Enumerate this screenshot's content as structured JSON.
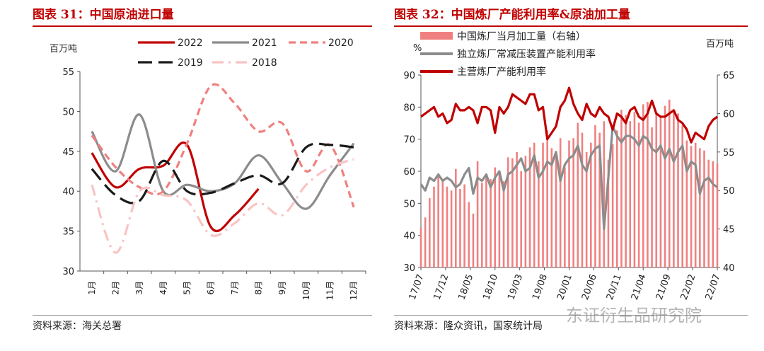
{
  "left": {
    "title": "图表 31：中国原油进口量",
    "source": "资料来源：海关总署",
    "chart_data": {
      "type": "line",
      "title": "中国原油进口量",
      "ylabel": "百万吨",
      "ylim": [
        30,
        55
      ],
      "yticks": [
        30,
        35,
        40,
        45,
        50,
        55
      ],
      "categories": [
        "1月",
        "2月",
        "3月",
        "4月",
        "5月",
        "6月",
        "7月",
        "8月",
        "9月",
        "10月",
        "11月",
        "12月"
      ],
      "legend_position": "top",
      "grid": false,
      "series": [
        {
          "name": "2022",
          "color": "#c00000",
          "dash": "solid",
          "values": [
            44.8,
            40.5,
            42.8,
            43.2,
            45.8,
            35.5,
            37.0,
            40.3,
            null,
            null,
            null,
            null
          ]
        },
        {
          "name": "2021",
          "color": "#8c8c8c",
          "dash": "solid",
          "values": [
            47.5,
            42.5,
            49.6,
            40.0,
            40.8,
            40.0,
            41.0,
            44.5,
            41.0,
            37.8,
            42.0,
            46.0
          ]
        },
        {
          "name": "2020",
          "color": "#f08080",
          "dash": "dash",
          "values": [
            47.0,
            43.0,
            40.5,
            40.0,
            46.0,
            53.2,
            51.0,
            47.5,
            48.5,
            42.5,
            45.8,
            38.0
          ]
        },
        {
          "name": "2019",
          "color": "#1a1a1a",
          "dash": "longdash",
          "values": [
            42.8,
            39.5,
            38.8,
            43.8,
            40.0,
            39.8,
            41.0,
            42.0,
            41.0,
            45.5,
            45.8,
            45.5
          ]
        },
        {
          "name": "2018",
          "color": "#f8c4c4",
          "dash": "dashdot",
          "values": [
            40.8,
            32.3,
            40.0,
            39.5,
            38.8,
            34.5,
            36.0,
            38.5,
            37.0,
            40.8,
            43.0,
            44.0
          ]
        }
      ]
    }
  },
  "right": {
    "title": "图表 32：中国炼厂产能利用率&原油加工量",
    "source": "资料来源：隆众资讯，国家统计局",
    "chart_data": {
      "type": "combo",
      "title": "中国炼厂产能利用率&原油加工量",
      "ylabel_left": "%",
      "ylabel_right": "百万吨",
      "ylim_left": [
        30,
        90
      ],
      "yticks_left": [
        30,
        40,
        50,
        60,
        70,
        80,
        90
      ],
      "ylim_right": [
        40,
        65
      ],
      "yticks_right": [
        40,
        45,
        50,
        55,
        60,
        65
      ],
      "xticks": [
        "17/07",
        "17/12",
        "18/05",
        "18/10",
        "19/03",
        "19/08",
        "20/01",
        "20/06",
        "20/11",
        "21/04",
        "21/09",
        "22/02",
        "22/07"
      ],
      "legend_position": "top",
      "grid": false,
      "series": [
        {
          "name": "中国炼厂当月加工量（右轴）",
          "type": "bar",
          "axis": "right",
          "color": "#f08080",
          "values": [
            45.2,
            46.5,
            49.0,
            50.5,
            52.2,
            51.2,
            50.5,
            50.0,
            52.8,
            50.2,
            50.8,
            48.5,
            47.0,
            53.8,
            51.0,
            52.0,
            51.5,
            53.0,
            52.5,
            51.2,
            54.3,
            54.2,
            55.0,
            52.5,
            54.5,
            55.6,
            56.2,
            53.8,
            56.2,
            57.8,
            55.5,
            54.5,
            56.8,
            53.0,
            56.5,
            56.8,
            58.8,
            57.5,
            55.0,
            56.2,
            58.5,
            57.5,
            59.0,
            54.0,
            56.0,
            57.8,
            60.5,
            59.8,
            59.0,
            60.2,
            58.8,
            61.2,
            61.5,
            58.2,
            60.0,
            59.5,
            61.0,
            61.8,
            60.5,
            60.0,
            58.5,
            56.5,
            55.8,
            56.2,
            55.5,
            55.2,
            54.0,
            53.8,
            53.5
          ]
        },
        {
          "name": "独立炼厂常减压装置产能利用率",
          "type": "line",
          "axis": "left",
          "color": "#8c8c8c",
          "values": [
            56,
            54,
            58,
            57,
            59,
            57,
            58,
            57,
            55,
            56,
            59,
            61,
            53,
            58,
            57,
            59,
            55,
            58,
            60,
            54,
            59,
            60,
            62,
            64,
            60,
            61,
            65,
            58,
            60,
            63,
            62,
            66,
            57,
            62,
            64,
            65,
            68,
            62,
            60,
            65,
            67,
            68,
            42,
            58,
            74,
            71,
            69,
            71,
            71,
            70,
            68,
            71,
            70,
            67,
            66,
            68,
            64,
            67,
            63,
            66,
            68,
            60,
            63,
            62,
            53,
            57,
            58,
            56,
            55
          ]
        },
        {
          "name": "主营炼厂产能利用率",
          "type": "line",
          "axis": "left",
          "color": "#c00000",
          "values": [
            77,
            78,
            79,
            80,
            77,
            78,
            75,
            76,
            81,
            79,
            79,
            80,
            79,
            75,
            80,
            80,
            79,
            72,
            80,
            78,
            80,
            84,
            83,
            82,
            81,
            84,
            84,
            79,
            80,
            70,
            72,
            74,
            80,
            82,
            86,
            81,
            78,
            76,
            81,
            78,
            77,
            80,
            78,
            77,
            73,
            78,
            77,
            75,
            79,
            80,
            77,
            76,
            78,
            82,
            78,
            77,
            77,
            78,
            79,
            76,
            75,
            73,
            69,
            72,
            71,
            70,
            74,
            76,
            77
          ]
        }
      ]
    }
  },
  "watermark": "东证衍生品研究院"
}
